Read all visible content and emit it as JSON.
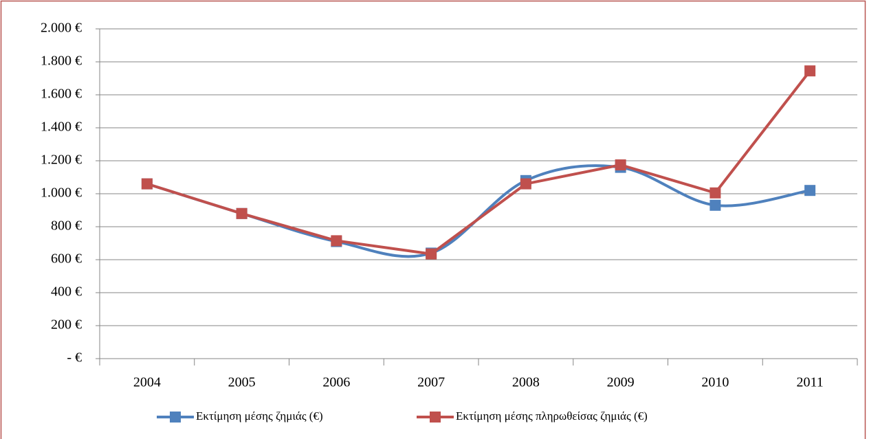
{
  "chart_data": {
    "type": "line",
    "categories": [
      "2004",
      "2005",
      "2006",
      "2007",
      "2008",
      "2009",
      "2010",
      "2011"
    ],
    "series": [
      {
        "name": "Εκτίμηση μέσης ζημιάς (€)",
        "color": "#4f81bd",
        "smooth": true,
        "values": [
          1060,
          880,
          710,
          640,
          1080,
          1160,
          930,
          1020
        ]
      },
      {
        "name": "Εκτίμηση μέσης πληρωθείσας ζημιάς (€)",
        "color": "#c0504d",
        "smooth": false,
        "values": [
          1060,
          880,
          715,
          635,
          1060,
          1175,
          1005,
          1745
        ]
      }
    ],
    "ylim": [
      0,
      2000
    ],
    "yticks": [
      {
        "value": 0,
        "label": "- €"
      },
      {
        "value": 200,
        "label": "200 €"
      },
      {
        "value": 400,
        "label": "400 €"
      },
      {
        "value": 600,
        "label": "600 €"
      },
      {
        "value": 800,
        "label": "800 €"
      },
      {
        "value": 1000,
        "label": "1.000 €"
      },
      {
        "value": 1200,
        "label": "1.200 €"
      },
      {
        "value": 1400,
        "label": "1.400 €"
      },
      {
        "value": 1600,
        "label": "1.600 €"
      },
      {
        "value": 1800,
        "label": "1.800 €"
      },
      {
        "value": 2000,
        "label": "2.000 €"
      }
    ],
    "grid": true,
    "legend": "bottom"
  }
}
